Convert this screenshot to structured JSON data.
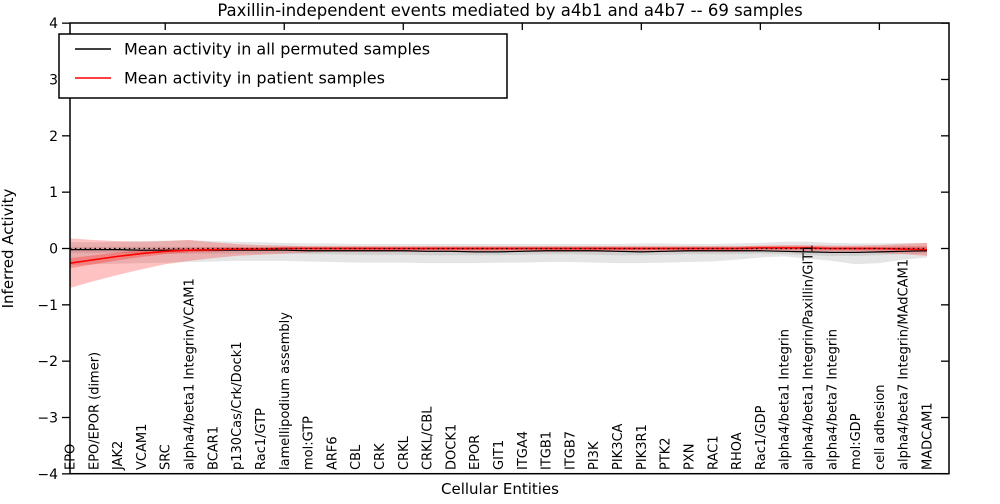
{
  "chart_data": {
    "type": "line",
    "title": "Paxillin-independent events mediated by a4b1 and a4b7 -- 69 samples",
    "xlabel": "Cellular Entities",
    "ylabel": "Inferred Activity",
    "ylim": [
      -4,
      4
    ],
    "yticks": [
      -4,
      -3,
      -2,
      -1,
      0,
      1,
      2,
      3,
      4
    ],
    "ytick_labels": [
      "−4",
      "−3",
      "−2",
      "−1",
      "0",
      "1",
      "2",
      "3",
      "4"
    ],
    "top_tick_indices": [
      4,
      9,
      14,
      19,
      24,
      29,
      34
    ],
    "grid": false,
    "legend_position": "upper left",
    "background_color": "#ffffff",
    "zero_line": {
      "y": 0,
      "style": "dotted",
      "color": "#000000"
    },
    "categories": [
      "EPO",
      "EPO/EPOR (dimer)",
      "JAK2",
      "VCAM1",
      "SRC",
      "alpha4/beta1 Integrin/VCAM1",
      "BCAR1",
      "p130Cas/Crk/Dock1",
      "Rac1/GTP",
      "lamellipodium assembly",
      "mol:GTP",
      "ARF6",
      "CBL",
      "CRK",
      "CRKL",
      "CRKL/CBL",
      "DOCK1",
      "EPOR",
      "GIT1",
      "ITGA4",
      "ITGB1",
      "ITGB7",
      "PI3K",
      "PIK3CA",
      "PIK3R1",
      "PTK2",
      "PXN",
      "RAC1",
      "RHOA",
      "Rac1/GDP",
      "alpha4/beta1 Integrin",
      "alpha4/beta1 Integrin/Paxillin/GIT1",
      "alpha4/beta7 Integrin",
      "mol:GDP",
      "cell adhesion",
      "alpha4/beta7 Integrin/MAdCAM1",
      "MADCAM1"
    ],
    "series": [
      {
        "name": "Mean activity in all permuted samples",
        "color": "#000000",
        "values": [
          -0.02,
          -0.02,
          -0.02,
          -0.03,
          -0.03,
          -0.03,
          -0.03,
          -0.03,
          -0.03,
          -0.03,
          -0.04,
          -0.04,
          -0.04,
          -0.04,
          -0.04,
          -0.05,
          -0.05,
          -0.06,
          -0.06,
          -0.05,
          -0.04,
          -0.04,
          -0.04,
          -0.05,
          -0.06,
          -0.05,
          -0.04,
          -0.04,
          -0.04,
          -0.04,
          -0.05,
          -0.06,
          -0.07,
          -0.07,
          -0.06,
          -0.05,
          -0.04
        ]
      },
      {
        "name": "Mean activity in patient samples",
        "color": "#ff0000",
        "values": [
          -0.26,
          -0.2,
          -0.14,
          -0.09,
          -0.05,
          -0.03,
          -0.02,
          -0.01,
          -0.01,
          0.0,
          0.0,
          0.0,
          0.0,
          0.0,
          0.0,
          0.0,
          0.0,
          0.0,
          0.0,
          0.0,
          0.0,
          0.0,
          0.0,
          0.0,
          0.0,
          0.0,
          0.0,
          0.0,
          0.0,
          0.01,
          0.01,
          0.01,
          0.0,
          0.0,
          0.0,
          -0.01,
          -0.02
        ]
      }
    ],
    "bands": [
      {
        "name": "permuted-range-outer",
        "color": "#000000",
        "opacity": 0.1,
        "upper": [
          0.11,
          0.11,
          0.12,
          0.13,
          0.14,
          0.15,
          0.13,
          0.12,
          0.11,
          0.1,
          0.09,
          0.09,
          0.08,
          0.08,
          0.08,
          0.08,
          0.08,
          0.08,
          0.08,
          0.08,
          0.08,
          0.08,
          0.08,
          0.08,
          0.09,
          0.09,
          0.08,
          0.08,
          0.09,
          0.1,
          0.12,
          0.12,
          0.1,
          0.09,
          0.09,
          0.1,
          0.1
        ],
        "lower": [
          -0.3,
          -0.28,
          -0.27,
          -0.26,
          -0.25,
          -0.24,
          -0.23,
          -0.22,
          -0.22,
          -0.22,
          -0.23,
          -0.24,
          -0.25,
          -0.25,
          -0.25,
          -0.26,
          -0.26,
          -0.26,
          -0.25,
          -0.25,
          -0.24,
          -0.24,
          -0.25,
          -0.26,
          -0.26,
          -0.25,
          -0.24,
          -0.23,
          -0.2,
          -0.16,
          -0.14,
          -0.18,
          -0.22,
          -0.28,
          -0.26,
          -0.2,
          -0.16
        ]
      },
      {
        "name": "permuted-range-inner",
        "color": "#000000",
        "opacity": 0.09,
        "upper": [
          0.03,
          0.03,
          0.03,
          0.03,
          0.03,
          0.03,
          0.03,
          0.03,
          0.03,
          0.03,
          0.03,
          0.03,
          0.03,
          0.02,
          0.02,
          0.02,
          0.02,
          0.02,
          0.02,
          0.02,
          0.03,
          0.03,
          0.03,
          0.02,
          0.02,
          0.02,
          0.03,
          0.03,
          0.03,
          0.03,
          0.03,
          0.02,
          0.02,
          0.02,
          0.02,
          0.03,
          0.03
        ],
        "lower": [
          -0.08,
          -0.08,
          -0.08,
          -0.09,
          -0.09,
          -0.09,
          -0.09,
          -0.09,
          -0.09,
          -0.09,
          -0.1,
          -0.1,
          -0.11,
          -0.11,
          -0.11,
          -0.12,
          -0.12,
          -0.12,
          -0.12,
          -0.11,
          -0.1,
          -0.1,
          -0.11,
          -0.12,
          -0.12,
          -0.11,
          -0.1,
          -0.1,
          -0.1,
          -0.09,
          -0.1,
          -0.12,
          -0.13,
          -0.13,
          -0.12,
          -0.1,
          -0.09
        ]
      },
      {
        "name": "patient-range-outer",
        "color": "#ff0000",
        "opacity": 0.24,
        "upper": [
          0.18,
          0.15,
          0.13,
          0.12,
          0.13,
          0.15,
          0.11,
          0.08,
          0.06,
          0.05,
          0.04,
          0.04,
          0.04,
          0.04,
          0.04,
          0.04,
          0.04,
          0.04,
          0.04,
          0.04,
          0.04,
          0.04,
          0.04,
          0.04,
          0.04,
          0.04,
          0.04,
          0.04,
          0.04,
          0.05,
          0.06,
          0.06,
          0.05,
          0.05,
          0.06,
          0.08,
          0.1
        ],
        "lower": [
          -0.7,
          -0.58,
          -0.47,
          -0.37,
          -0.28,
          -0.22,
          -0.17,
          -0.13,
          -0.11,
          -0.09,
          -0.07,
          -0.06,
          -0.06,
          -0.06,
          -0.06,
          -0.06,
          -0.06,
          -0.06,
          -0.06,
          -0.06,
          -0.06,
          -0.06,
          -0.06,
          -0.06,
          -0.06,
          -0.06,
          -0.06,
          -0.06,
          -0.06,
          -0.05,
          -0.06,
          -0.07,
          -0.07,
          -0.07,
          -0.08,
          -0.1,
          -0.13
        ],
        "edge_color": "#ff9999"
      },
      {
        "name": "patient-range-inner",
        "color": "#ff0000",
        "opacity": 0.26,
        "upper": [
          -0.17,
          -0.12,
          -0.07,
          -0.03,
          0.0,
          0.01,
          0.02,
          0.02,
          0.02,
          0.03,
          0.03,
          0.03,
          0.03,
          0.03,
          0.03,
          0.03,
          0.03,
          0.03,
          0.03,
          0.03,
          0.03,
          0.03,
          0.03,
          0.03,
          0.03,
          0.03,
          0.03,
          0.03,
          0.03,
          0.04,
          0.04,
          0.04,
          0.03,
          0.03,
          0.03,
          0.04,
          0.04
        ],
        "lower": [
          -0.35,
          -0.28,
          -0.21,
          -0.15,
          -0.1,
          -0.07,
          -0.06,
          -0.04,
          -0.04,
          -0.03,
          -0.03,
          -0.03,
          -0.03,
          -0.03,
          -0.03,
          -0.03,
          -0.03,
          -0.03,
          -0.03,
          -0.03,
          -0.03,
          -0.03,
          -0.03,
          -0.03,
          -0.03,
          -0.03,
          -0.03,
          -0.03,
          -0.03,
          -0.02,
          -0.02,
          -0.02,
          -0.03,
          -0.03,
          -0.03,
          -0.04,
          -0.06
        ]
      }
    ]
  },
  "legend": {
    "items": [
      {
        "label": "Mean activity in all permuted samples",
        "color": "#000000"
      },
      {
        "label": "Mean activity in patient samples",
        "color": "#ff0000"
      }
    ]
  }
}
